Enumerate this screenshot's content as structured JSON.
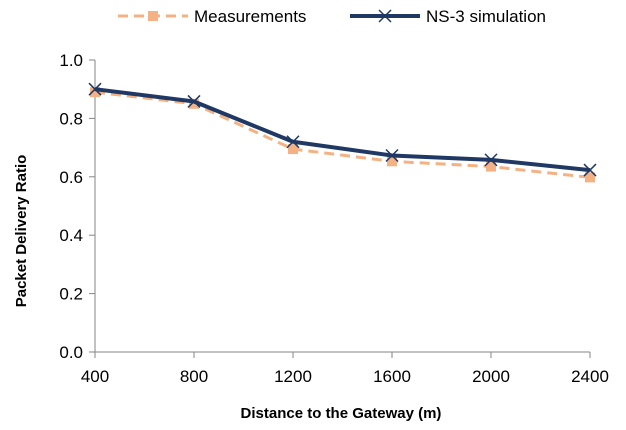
{
  "chart_data": {
    "type": "line",
    "x": [
      400,
      800,
      1200,
      1600,
      2000,
      2400
    ],
    "xticks": [
      "400",
      "800",
      "1200",
      "1600",
      "2000",
      "2400"
    ],
    "xlabel": "Distance to the Gateway (m)",
    "ylabel": "Packet Delivery Ratio",
    "ylim": [
      0,
      1.0
    ],
    "yticks": [
      "0.0",
      "0.2",
      "0.4",
      "0.6",
      "0.8",
      "1.0"
    ],
    "grid": false,
    "legend_position": "top",
    "series": [
      {
        "name": "Measurements",
        "values": [
          0.89,
          0.85,
          0.695,
          0.653,
          0.635,
          0.598
        ],
        "color": "#F4B183",
        "line_style": "dashed",
        "marker": "square"
      },
      {
        "name": "NS-3 simulation",
        "values": [
          0.9,
          0.858,
          0.72,
          0.673,
          0.658,
          0.623
        ],
        "color": "#1F3864",
        "line_style": "solid",
        "marker": "x"
      }
    ]
  }
}
